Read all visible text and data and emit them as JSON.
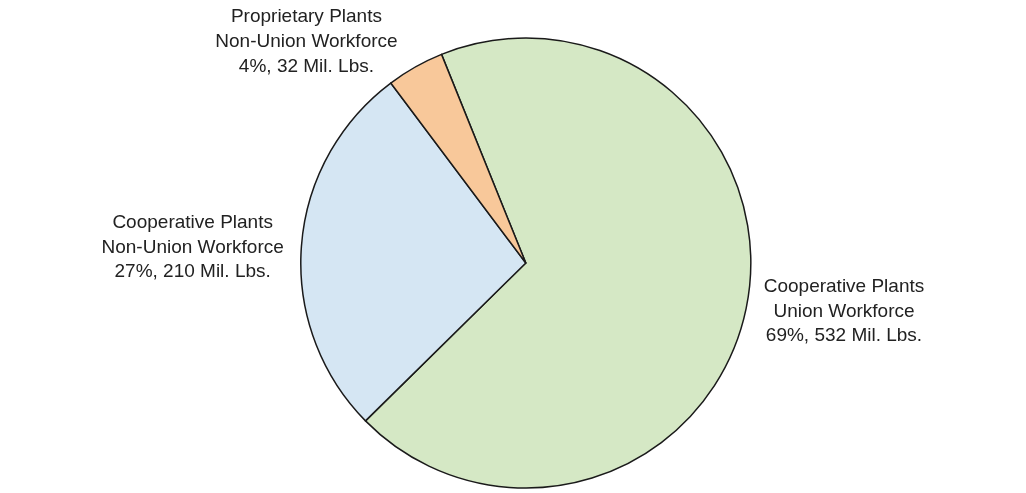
{
  "chart_data": {
    "type": "pie",
    "categories": [
      "Cooperative Plants\nUnion Workforce",
      "Cooperative Plants\nNon-Union Workforce",
      "Proprietary Plants\nNon-Union Workforce"
    ],
    "values": [
      532,
      210,
      32
    ],
    "colors": [
      "#d5e8c5",
      "#d5e6f3",
      "#f8c89a"
    ],
    "value_labels": [
      "69%, 532 Mil. Lbs.",
      "27%, 210 Mil. Lbs.",
      "4%, 32 Mil. Lbs."
    ],
    "legend": false
  }
}
